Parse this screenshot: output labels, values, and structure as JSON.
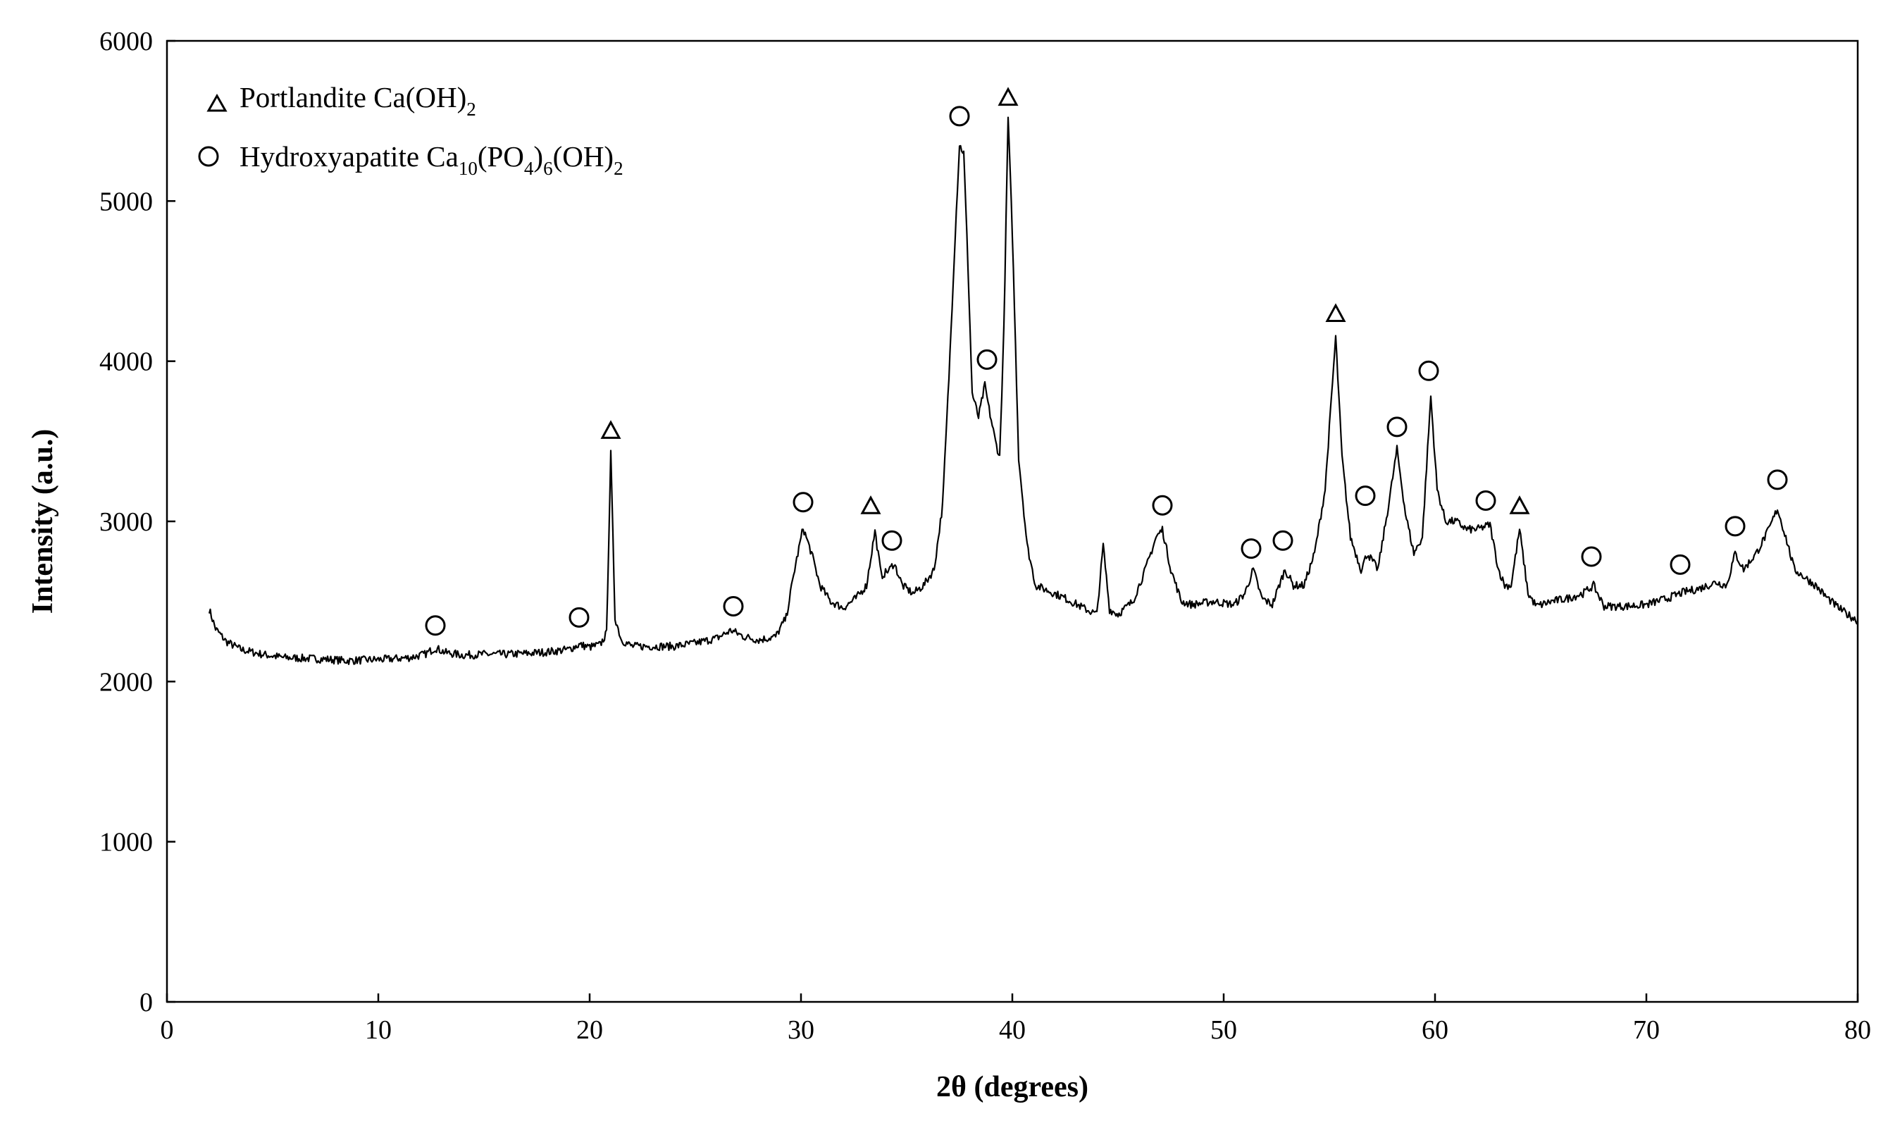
{
  "chart_data": {
    "type": "line",
    "title": "",
    "xlabel": "2θ (degrees)",
    "ylabel": "Intensity (a.u.)",
    "xlim": [
      0,
      80
    ],
    "ylim": [
      0,
      6000
    ],
    "x_ticks": [
      0,
      10,
      20,
      30,
      40,
      50,
      60,
      70,
      80
    ],
    "y_ticks": [
      0,
      1000,
      2000,
      3000,
      4000,
      5000,
      6000
    ],
    "grid": false,
    "legend_position": "top-left",
    "legend": [
      {
        "marker": "triangle",
        "main": "Portlandite Ca(OH)",
        "sub": "2",
        "tail": ""
      },
      {
        "marker": "circle",
        "main": "Hydroxyapatite Ca",
        "sub": "10",
        "mid": "(PO",
        "sub2": "4",
        "mid2": ")",
        "sub3": "6",
        "mid3": "(OH)",
        "sub4": "2"
      }
    ],
    "series": [
      {
        "points": [
          [
            2.0,
            2450
          ],
          [
            2.3,
            2330
          ],
          [
            2.8,
            2250
          ],
          [
            3.5,
            2200
          ],
          [
            4.5,
            2170
          ],
          [
            5.5,
            2150
          ],
          [
            6.5,
            2145
          ],
          [
            7.5,
            2140
          ],
          [
            8.5,
            2130
          ],
          [
            9.5,
            2135
          ],
          [
            10.5,
            2140
          ],
          [
            11.5,
            2150
          ],
          [
            12.2,
            2170
          ],
          [
            12.7,
            2210
          ],
          [
            13.2,
            2180
          ],
          [
            14,
            2165
          ],
          [
            15,
            2170
          ],
          [
            16,
            2170
          ],
          [
            17,
            2175
          ],
          [
            18,
            2185
          ],
          [
            19,
            2200
          ],
          [
            19.5,
            2230
          ],
          [
            20,
            2215
          ],
          [
            20.5,
            2230
          ],
          [
            20.8,
            2300
          ],
          [
            21.0,
            3420
          ],
          [
            21.2,
            2400
          ],
          [
            21.5,
            2260
          ],
          [
            22,
            2220
          ],
          [
            23,
            2220
          ],
          [
            24,
            2220
          ],
          [
            25,
            2240
          ],
          [
            26,
            2270
          ],
          [
            26.7,
            2320
          ],
          [
            27.3,
            2280
          ],
          [
            28,
            2260
          ],
          [
            28.8,
            2280
          ],
          [
            29.3,
            2400
          ],
          [
            29.7,
            2700
          ],
          [
            30.1,
            2960
          ],
          [
            30.5,
            2800
          ],
          [
            30.9,
            2600
          ],
          [
            31.4,
            2500
          ],
          [
            32,
            2460
          ],
          [
            32.6,
            2520
          ],
          [
            33.1,
            2600
          ],
          [
            33.5,
            2940
          ],
          [
            33.8,
            2660
          ],
          [
            34.2,
            2700
          ],
          [
            34.4,
            2740
          ],
          [
            34.8,
            2600
          ],
          [
            35.3,
            2550
          ],
          [
            35.8,
            2600
          ],
          [
            36.3,
            2700
          ],
          [
            36.7,
            3100
          ],
          [
            37.0,
            3900
          ],
          [
            37.3,
            4800
          ],
          [
            37.5,
            5350
          ],
          [
            37.7,
            5300
          ],
          [
            37.9,
            4600
          ],
          [
            38.1,
            3800
          ],
          [
            38.4,
            3650
          ],
          [
            38.7,
            3850
          ],
          [
            38.9,
            3700
          ],
          [
            39.2,
            3500
          ],
          [
            39.4,
            3400
          ],
          [
            39.6,
            4200
          ],
          [
            39.8,
            5520
          ],
          [
            40.0,
            4800
          ],
          [
            40.3,
            3400
          ],
          [
            40.7,
            2850
          ],
          [
            41.1,
            2600
          ],
          [
            42,
            2550
          ],
          [
            42.5,
            2520
          ],
          [
            43.5,
            2450
          ],
          [
            44.0,
            2420
          ],
          [
            44.3,
            2850
          ],
          [
            44.6,
            2450
          ],
          [
            45,
            2420
          ],
          [
            45.7,
            2500
          ],
          [
            46.3,
            2700
          ],
          [
            46.8,
            2900
          ],
          [
            47.1,
            2950
          ],
          [
            47.5,
            2700
          ],
          [
            48,
            2500
          ],
          [
            48.5,
            2480
          ],
          [
            49.5,
            2500
          ],
          [
            50.5,
            2480
          ],
          [
            51.0,
            2550
          ],
          [
            51.4,
            2700
          ],
          [
            51.8,
            2520
          ],
          [
            52.3,
            2480
          ],
          [
            52.9,
            2700
          ],
          [
            53.3,
            2600
          ],
          [
            53.8,
            2600
          ],
          [
            54.3,
            2800
          ],
          [
            54.8,
            3200
          ],
          [
            55.3,
            4150
          ],
          [
            55.6,
            3400
          ],
          [
            56.0,
            2900
          ],
          [
            56.5,
            2700
          ],
          [
            56.8,
            2800
          ],
          [
            57.3,
            2700
          ],
          [
            57.8,
            3100
          ],
          [
            58.2,
            3450
          ],
          [
            58.6,
            3050
          ],
          [
            59.0,
            2800
          ],
          [
            59.4,
            2900
          ],
          [
            59.8,
            3780
          ],
          [
            60.1,
            3200
          ],
          [
            60.5,
            3000
          ],
          [
            61,
            3000
          ],
          [
            61.5,
            2950
          ],
          [
            62,
            2950
          ],
          [
            62.6,
            2980
          ],
          [
            63.0,
            2700
          ],
          [
            63.3,
            2600
          ],
          [
            63.6,
            2600
          ],
          [
            64.0,
            2950
          ],
          [
            64.4,
            2550
          ],
          [
            64.8,
            2470
          ],
          [
            65.5,
            2500
          ],
          [
            66.3,
            2520
          ],
          [
            67,
            2550
          ],
          [
            67.5,
            2600
          ],
          [
            68,
            2470
          ],
          [
            69,
            2470
          ],
          [
            70,
            2480
          ],
          [
            71,
            2520
          ],
          [
            71.8,
            2560
          ],
          [
            72.5,
            2580
          ],
          [
            73.3,
            2620
          ],
          [
            73.8,
            2600
          ],
          [
            74.2,
            2800
          ],
          [
            74.6,
            2700
          ],
          [
            75.2,
            2800
          ],
          [
            75.8,
            2950
          ],
          [
            76.2,
            3080
          ],
          [
            76.6,
            2900
          ],
          [
            77,
            2700
          ],
          [
            77.5,
            2650
          ],
          [
            78,
            2600
          ],
          [
            78.5,
            2530
          ],
          [
            79,
            2470
          ],
          [
            79.5,
            2420
          ],
          [
            80,
            2380
          ]
        ]
      }
    ],
    "annotations": [
      {
        "marker": "circle",
        "x": 12.7,
        "y": 2350
      },
      {
        "marker": "circle",
        "x": 19.5,
        "y": 2400
      },
      {
        "marker": "triangle",
        "x": 21.0,
        "y": 3570
      },
      {
        "marker": "circle",
        "x": 26.8,
        "y": 2470
      },
      {
        "marker": "circle",
        "x": 30.1,
        "y": 3120
      },
      {
        "marker": "triangle",
        "x": 33.3,
        "y": 3100
      },
      {
        "marker": "circle",
        "x": 34.3,
        "y": 2880
      },
      {
        "marker": "circle",
        "x": 37.5,
        "y": 5530
      },
      {
        "marker": "triangle",
        "x": 39.8,
        "y": 5650
      },
      {
        "marker": "circle",
        "x": 38.8,
        "y": 4010
      },
      {
        "marker": "circle",
        "x": 47.1,
        "y": 3100
      },
      {
        "marker": "circle",
        "x": 51.3,
        "y": 2830
      },
      {
        "marker": "circle",
        "x": 52.8,
        "y": 2880
      },
      {
        "marker": "triangle",
        "x": 55.3,
        "y": 4300
      },
      {
        "marker": "circle",
        "x": 56.7,
        "y": 3160
      },
      {
        "marker": "circle",
        "x": 58.2,
        "y": 3590
      },
      {
        "marker": "circle",
        "x": 59.7,
        "y": 3940
      },
      {
        "marker": "circle",
        "x": 62.4,
        "y": 3130
      },
      {
        "marker": "triangle",
        "x": 64.0,
        "y": 3100
      },
      {
        "marker": "circle",
        "x": 67.4,
        "y": 2780
      },
      {
        "marker": "circle",
        "x": 71.6,
        "y": 2730
      },
      {
        "marker": "circle",
        "x": 74.2,
        "y": 2970
      },
      {
        "marker": "circle",
        "x": 76.2,
        "y": 3260
      }
    ]
  }
}
